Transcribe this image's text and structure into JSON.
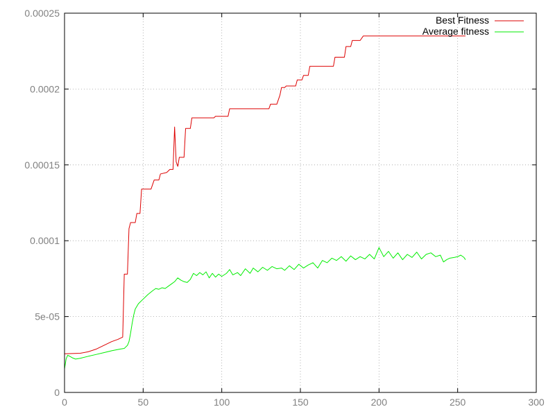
{
  "chart_data": {
    "type": "line",
    "title": "",
    "xlabel": "",
    "ylabel": "",
    "xlim": [
      0,
      300
    ],
    "ylim": [
      0,
      0.00025
    ],
    "grid": true,
    "legend_position": "top-right",
    "x_ticks": [
      0,
      50,
      100,
      150,
      200,
      250,
      300
    ],
    "x_tick_labels": [
      "0",
      "50",
      "100",
      "150",
      "200",
      "250",
      "300"
    ],
    "y_ticks": [
      0,
      5e-05,
      0.0001,
      0.00015,
      0.0002,
      0.00025
    ],
    "y_tick_labels": [
      "0",
      "5e-05",
      "0.0001",
      "0.00015",
      "0.0002",
      "0.00025"
    ],
    "series": [
      {
        "name": "Best Fitness",
        "color": "#dd0000",
        "points": [
          [
            0,
            2.55e-05
          ],
          [
            10,
            2.58e-05
          ],
          [
            15,
            2.68e-05
          ],
          [
            20,
            2.85e-05
          ],
          [
            25,
            3.1e-05
          ],
          [
            30,
            3.35e-05
          ],
          [
            34,
            3.5e-05
          ],
          [
            37,
            3.65e-05
          ],
          [
            38,
            7.8e-05
          ],
          [
            40,
            7.8e-05
          ],
          [
            41,
            0.000108
          ],
          [
            42,
            0.000112
          ],
          [
            45,
            0.000112
          ],
          [
            46,
            0.000118
          ],
          [
            48,
            0.000118
          ],
          [
            49,
            0.000134
          ],
          [
            55,
            0.000134
          ],
          [
            57,
            0.00014
          ],
          [
            60,
            0.00014
          ],
          [
            61,
            0.000144
          ],
          [
            65,
            0.000145
          ],
          [
            67,
            0.000147
          ],
          [
            69,
            0.000147
          ],
          [
            70,
            0.000175
          ],
          [
            71,
            0.000152
          ],
          [
            72,
            0.000149
          ],
          [
            73,
            0.000155
          ],
          [
            76,
            0.000155
          ],
          [
            77,
            0.000174
          ],
          [
            80,
            0.000174
          ],
          [
            81,
            0.000181
          ],
          [
            95,
            0.000181
          ],
          [
            96,
            0.000182
          ],
          [
            104,
            0.000182
          ],
          [
            105,
            0.000187
          ],
          [
            130,
            0.000187
          ],
          [
            131,
            0.00019
          ],
          [
            135,
            0.00019
          ],
          [
            137,
            0.000196
          ],
          [
            138,
            0.000201
          ],
          [
            140,
            0.000201
          ],
          [
            141,
            0.000202
          ],
          [
            147,
            0.000202
          ],
          [
            148,
            0.000206
          ],
          [
            151,
            0.000206
          ],
          [
            152,
            0.000209
          ],
          [
            155,
            0.000209
          ],
          [
            156,
            0.000215
          ],
          [
            171,
            0.000215
          ],
          [
            172,
            0.000221
          ],
          [
            178,
            0.000221
          ],
          [
            179,
            0.000228
          ],
          [
            182,
            0.000228
          ],
          [
            183,
            0.000232
          ],
          [
            188,
            0.000232
          ],
          [
            190,
            0.000235
          ],
          [
            255,
            0.000235
          ]
        ]
      },
      {
        "name": "Average fitness",
        "color": "#00ee00",
        "points": [
          [
            0,
            1.55e-05
          ],
          [
            1,
            2.2e-05
          ],
          [
            2,
            2.45e-05
          ],
          [
            3,
            2.4e-05
          ],
          [
            5,
            2.28e-05
          ],
          [
            7,
            2.2e-05
          ],
          [
            10,
            2.25e-05
          ],
          [
            15,
            2.38e-05
          ],
          [
            20,
            2.5e-05
          ],
          [
            25,
            2.62e-05
          ],
          [
            30,
            2.75e-05
          ],
          [
            35,
            2.85e-05
          ],
          [
            38,
            2.9e-05
          ],
          [
            40,
            3.1e-05
          ],
          [
            41,
            3.35e-05
          ],
          [
            42,
            3.9e-05
          ],
          [
            43,
            4.55e-05
          ],
          [
            44,
            5.1e-05
          ],
          [
            45,
            5.5e-05
          ],
          [
            47,
            5.85e-05
          ],
          [
            50,
            6.15e-05
          ],
          [
            53,
            6.45e-05
          ],
          [
            56,
            6.7e-05
          ],
          [
            58,
            6.85e-05
          ],
          [
            60,
            6.8e-05
          ],
          [
            62,
            6.9e-05
          ],
          [
            64,
            6.85e-05
          ],
          [
            66,
            7e-05
          ],
          [
            68,
            7.15e-05
          ],
          [
            70,
            7.3e-05
          ],
          [
            72,
            7.55e-05
          ],
          [
            74,
            7.4e-05
          ],
          [
            76,
            7.3e-05
          ],
          [
            78,
            7.25e-05
          ],
          [
            80,
            7.45e-05
          ],
          [
            82,
            7.85e-05
          ],
          [
            84,
            7.7e-05
          ],
          [
            86,
            7.9e-05
          ],
          [
            88,
            7.75e-05
          ],
          [
            90,
            7.95e-05
          ],
          [
            92,
            7.55e-05
          ],
          [
            94,
            7.85e-05
          ],
          [
            96,
            7.6e-05
          ],
          [
            98,
            7.8e-05
          ],
          [
            100,
            7.65e-05
          ],
          [
            103,
            7.85e-05
          ],
          [
            105,
            8.1e-05
          ],
          [
            107,
            7.75e-05
          ],
          [
            110,
            7.9e-05
          ],
          [
            112,
            7.7e-05
          ],
          [
            115,
            8.15e-05
          ],
          [
            118,
            7.85e-05
          ],
          [
            120,
            8.2e-05
          ],
          [
            123,
            7.95e-05
          ],
          [
            126,
            8.25e-05
          ],
          [
            129,
            8.05e-05
          ],
          [
            132,
            8.3e-05
          ],
          [
            135,
            8.15e-05
          ],
          [
            138,
            8.2e-05
          ],
          [
            140,
            8.05e-05
          ],
          [
            143,
            8.35e-05
          ],
          [
            146,
            8.1e-05
          ],
          [
            149,
            8.45e-05
          ],
          [
            152,
            8.2e-05
          ],
          [
            155,
            8.4e-05
          ],
          [
            158,
            8.55e-05
          ],
          [
            161,
            8.2e-05
          ],
          [
            164,
            8.7e-05
          ],
          [
            167,
            8.55e-05
          ],
          [
            170,
            8.85e-05
          ],
          [
            173,
            8.7e-05
          ],
          [
            176,
            8.95e-05
          ],
          [
            179,
            8.65e-05
          ],
          [
            182,
            9e-05
          ],
          [
            185,
            8.75e-05
          ],
          [
            188,
            8.95e-05
          ],
          [
            191,
            8.8e-05
          ],
          [
            194,
            9.1e-05
          ],
          [
            197,
            8.8e-05
          ],
          [
            200,
            9.55e-05
          ],
          [
            203,
            8.95e-05
          ],
          [
            206,
            9.3e-05
          ],
          [
            209,
            8.85e-05
          ],
          [
            212,
            9.2e-05
          ],
          [
            215,
            8.75e-05
          ],
          [
            218,
            9.1e-05
          ],
          [
            221,
            8.9e-05
          ],
          [
            224,
            9.25e-05
          ],
          [
            227,
            8.8e-05
          ],
          [
            230,
            9.1e-05
          ],
          [
            233,
            9.2e-05
          ],
          [
            236,
            8.95e-05
          ],
          [
            239,
            9.05e-05
          ],
          [
            241,
            8.6e-05
          ],
          [
            243,
            8.75e-05
          ],
          [
            245,
            8.85e-05
          ],
          [
            248,
            8.9e-05
          ],
          [
            250,
            8.95e-05
          ],
          [
            252,
            9.05e-05
          ],
          [
            254,
            8.9e-05
          ],
          [
            255,
            8.75e-05
          ]
        ]
      }
    ]
  }
}
